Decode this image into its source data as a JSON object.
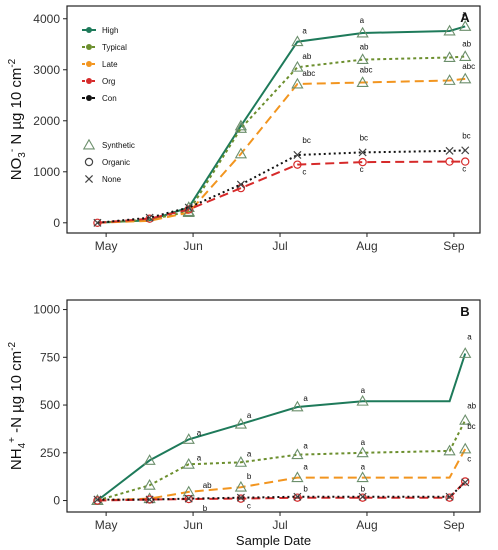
{
  "chart_data": [
    {
      "type": "line",
      "panel_label": "A",
      "ylabel": "NO 3 - N µg 10 cm-2",
      "ylabel_parts": {
        "main": "NO",
        "sub": "3",
        "sup": "-",
        "rest": "N µg 10 cm",
        "exp": "-2"
      },
      "xlabel": "",
      "x_ticks": [
        "May",
        "Jun",
        "Jul",
        "Aug",
        "Sep"
      ],
      "y_ticks": [
        0,
        1000,
        2000,
        3000,
        4000
      ],
      "ylim": [
        -200,
        4250
      ],
      "xlim": [
        0.55,
        5.3
      ],
      "x": [
        0.9,
        1.5,
        1.95,
        2.55,
        3.2,
        3.95,
        4.95,
        5.13
      ],
      "series": [
        {
          "name": "High",
          "color": "#1e7a5a",
          "dash": "",
          "values": [
            0,
            50,
            300,
            1900,
            3550,
            3720,
            3760,
            3850
          ],
          "markers": [
            "none",
            "none",
            "tri",
            "tri",
            "tri",
            "tri",
            "tri",
            "tri"
          ]
        },
        {
          "name": "Typical",
          "color": "#6c8f2e",
          "dash": "3,3",
          "values": [
            0,
            60,
            220,
            1850,
            3050,
            3200,
            3240,
            3260
          ],
          "markers": [
            "none",
            "none",
            "tri",
            "tri",
            "tri",
            "tri",
            "tri",
            "tri"
          ]
        },
        {
          "name": "Late",
          "color": "#f2951f",
          "dash": "9,5",
          "values": [
            0,
            40,
            200,
            1350,
            2720,
            2750,
            2790,
            2820
          ],
          "markers": [
            "none",
            "none",
            "tri",
            "tri",
            "tri",
            "tri",
            "tri",
            "tri"
          ]
        },
        {
          "name": "Org",
          "color": "#d62a2a",
          "dash": "9,5",
          "values": [
            0,
            80,
            260,
            680,
            1140,
            1190,
            1200,
            1200
          ],
          "markers": [
            "circ",
            "circ",
            "circ",
            "circ",
            "circ",
            "circ",
            "circ",
            "circ"
          ]
        },
        {
          "name": "Con",
          "color": "#111111",
          "dash": "2,3",
          "values": [
            0,
            100,
            300,
            750,
            1330,
            1380,
            1410,
            1420
          ],
          "markers": [
            "x",
            "x",
            "x",
            "x",
            "x",
            "x",
            "x",
            "x"
          ]
        }
      ],
      "annotations": [
        {
          "x": 3.2,
          "y": 3550,
          "text": "a",
          "dx": 5,
          "dy": -8
        },
        {
          "x": 3.2,
          "y": 3050,
          "text": "ab",
          "dx": 5,
          "dy": -8
        },
        {
          "x": 3.2,
          "y": 2720,
          "text": "abc",
          "dx": 5,
          "dy": -8
        },
        {
          "x": 3.2,
          "y": 1330,
          "text": "bc",
          "dx": 5,
          "dy": -12
        },
        {
          "x": 3.2,
          "y": 1140,
          "text": "c",
          "dx": 5,
          "dy": 10
        },
        {
          "x": 3.95,
          "y": 3720,
          "text": "a",
          "dx": -3,
          "dy": -10
        },
        {
          "x": 3.95,
          "y": 3200,
          "text": "ab",
          "dx": -3,
          "dy": -10
        },
        {
          "x": 3.95,
          "y": 2750,
          "text": "abc",
          "dx": -3,
          "dy": -10
        },
        {
          "x": 3.95,
          "y": 1380,
          "text": "bc",
          "dx": -3,
          "dy": -12
        },
        {
          "x": 3.95,
          "y": 1190,
          "text": "c",
          "dx": -3,
          "dy": 10
        },
        {
          "x": 5.13,
          "y": 3850,
          "text": "a",
          "dx": -3,
          "dy": -10
        },
        {
          "x": 5.13,
          "y": 3260,
          "text": "ab",
          "dx": -3,
          "dy": -10
        },
        {
          "x": 5.13,
          "y": 2820,
          "text": "abc",
          "dx": -3,
          "dy": -10
        },
        {
          "x": 5.13,
          "y": 1420,
          "text": "bc",
          "dx": -3,
          "dy": -12
        },
        {
          "x": 5.13,
          "y": 1200,
          "text": "c",
          "dx": -3,
          "dy": 10
        }
      ],
      "legend": {
        "placement": "top-left",
        "series_entries": [
          "High",
          "Typical",
          "Late",
          "Org",
          "Con"
        ],
        "marker_entries": [
          {
            "symbol": "tri",
            "label": "Synthetic"
          },
          {
            "symbol": "circ",
            "label": "Organic"
          },
          {
            "symbol": "x",
            "label": "None"
          }
        ]
      },
      "grid": false
    },
    {
      "type": "line",
      "panel_label": "B",
      "ylabel": "NH 4 + -N µg 10 cm-2",
      "ylabel_parts": {
        "main": "NH",
        "sub": "4",
        "sup": "+",
        "rest": "-N µg 10 cm",
        "exp": "-2"
      },
      "xlabel": "Sample Date",
      "x_ticks": [
        "May",
        "Jun",
        "Jul",
        "Aug",
        "Sep"
      ],
      "y_ticks": [
        0,
        250,
        500,
        750,
        1000
      ],
      "ylim": [
        -60,
        1050
      ],
      "xlim": [
        0.55,
        5.3
      ],
      "x": [
        0.9,
        1.5,
        1.95,
        2.55,
        3.2,
        3.95,
        4.95,
        5.13
      ],
      "series": [
        {
          "name": "High",
          "color": "#1e7a5a",
          "dash": "",
          "values": [
            0,
            210,
            320,
            400,
            490,
            520,
            520,
            770
          ],
          "markers": [
            "tri",
            "tri",
            "tri",
            "tri",
            "tri",
            "tri",
            "none",
            "tri"
          ]
        },
        {
          "name": "Typical",
          "color": "#6c8f2e",
          "dash": "3,3",
          "values": [
            0,
            80,
            190,
            200,
            240,
            250,
            260,
            420
          ],
          "markers": [
            "tri",
            "tri",
            "tri",
            "tri",
            "tri",
            "tri",
            "tri",
            "tri"
          ]
        },
        {
          "name": "Late",
          "color": "#f2951f",
          "dash": "9,5",
          "values": [
            0,
            10,
            45,
            70,
            120,
            120,
            120,
            270
          ],
          "markers": [
            "tri",
            "tri",
            "tri",
            "tri",
            "tri",
            "tri",
            "none",
            "tri"
          ]
        },
        {
          "name": "Org",
          "color": "#d62a2a",
          "dash": "9,5",
          "values": [
            0,
            5,
            8,
            10,
            15,
            15,
            15,
            100
          ],
          "markers": [
            "circ",
            "circ",
            "circ",
            "circ",
            "circ",
            "circ",
            "circ",
            "circ"
          ]
        },
        {
          "name": "Con",
          "color": "#111111",
          "dash": "2,3",
          "values": [
            5,
            5,
            10,
            15,
            20,
            20,
            20,
            95
          ],
          "markers": [
            "x",
            "x",
            "x",
            "x",
            "x",
            "x",
            "x",
            "x"
          ]
        }
      ],
      "annotations": [
        {
          "x": 1.95,
          "y": 320,
          "text": "a",
          "dx": 8,
          "dy": -4
        },
        {
          "x": 1.95,
          "y": 190,
          "text": "a",
          "dx": 8,
          "dy": -4
        },
        {
          "x": 1.95,
          "y": 45,
          "text": "ab",
          "dx": 14,
          "dy": -4
        },
        {
          "x": 1.95,
          "y": 8,
          "text": "b",
          "dx": 14,
          "dy": 12
        },
        {
          "x": 2.55,
          "y": 400,
          "text": "a",
          "dx": 6,
          "dy": -6
        },
        {
          "x": 2.55,
          "y": 200,
          "text": "a",
          "dx": 6,
          "dy": -6
        },
        {
          "x": 2.55,
          "y": 70,
          "text": "b",
          "dx": 6,
          "dy": -8
        },
        {
          "x": 2.55,
          "y": 10,
          "text": "c",
          "dx": 6,
          "dy": 10
        },
        {
          "x": 3.2,
          "y": 490,
          "text": "a",
          "dx": 6,
          "dy": -6
        },
        {
          "x": 3.2,
          "y": 240,
          "text": "a",
          "dx": 6,
          "dy": -6
        },
        {
          "x": 3.2,
          "y": 120,
          "text": "a",
          "dx": 6,
          "dy": -8
        },
        {
          "x": 3.2,
          "y": 15,
          "text": "b",
          "dx": 6,
          "dy": -6
        },
        {
          "x": 3.95,
          "y": 520,
          "text": "a",
          "dx": -2,
          "dy": -8
        },
        {
          "x": 3.95,
          "y": 250,
          "text": "a",
          "dx": -2,
          "dy": -8
        },
        {
          "x": 3.95,
          "y": 120,
          "text": "a",
          "dx": -2,
          "dy": -8
        },
        {
          "x": 3.95,
          "y": 15,
          "text": "b",
          "dx": -2,
          "dy": -6
        },
        {
          "x": 5.13,
          "y": 770,
          "text": "a",
          "dx": 2,
          "dy": -14
        },
        {
          "x": 5.13,
          "y": 420,
          "text": "ab",
          "dx": 2,
          "dy": -12
        },
        {
          "x": 5.13,
          "y": 270,
          "text": "bc",
          "dx": 2,
          "dy": -20
        },
        {
          "x": 5.13,
          "y": 100,
          "text": "c",
          "dx": 2,
          "dy": -20
        }
      ],
      "grid": false
    }
  ]
}
